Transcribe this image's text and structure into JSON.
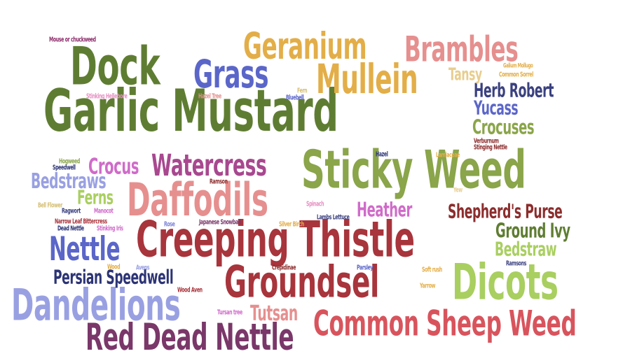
{
  "words": [
    {
      "text": "Garlic Mustard",
      "color": "#5f7d32"
    },
    {
      "text": "Sticky Weed",
      "color": "#8aa54a"
    },
    {
      "text": "Creeping Thistle",
      "color": "#a8343c"
    },
    {
      "text": "Dock",
      "color": "#5f7d32"
    },
    {
      "text": "Geranium",
      "color": "#e3ae48"
    },
    {
      "text": "Brambles",
      "color": "#e68f8f"
    },
    {
      "text": "Mullein",
      "color": "#e3ae48"
    },
    {
      "text": "Grass",
      "color": "#5b66c9"
    },
    {
      "text": "Groundsel",
      "color": "#a8343c"
    },
    {
      "text": "Dicots",
      "color": "#a9cf60"
    },
    {
      "text": "Dandelions",
      "color": "#99a0e2"
    },
    {
      "text": "Daffodils",
      "color": "#e68f8f"
    },
    {
      "text": "Common Sheep Weed",
      "color": "#d8545d"
    },
    {
      "text": "Red Dead Nettle",
      "color": "#7a3769"
    },
    {
      "text": "Nettle",
      "color": "#5b66c9"
    },
    {
      "text": "Watercress",
      "color": "#a8488f"
    },
    {
      "text": "Persian Speedwell",
      "color": "#2c3475"
    },
    {
      "text": "Shepherd's Purse",
      "color": "#8c2d2d"
    },
    {
      "text": "Herb Robert",
      "color": "#3a417f"
    },
    {
      "text": "Crocuses",
      "color": "#8aa54a"
    },
    {
      "text": "Yucass",
      "color": "#5b66c9"
    },
    {
      "text": "Ground Ivy",
      "color": "#5f7d32"
    },
    {
      "text": "Bedstraw",
      "color": "#a9cf60"
    },
    {
      "text": "Tutsan",
      "color": "#e68f8f"
    },
    {
      "text": "Heather",
      "color": "#d06bc9"
    },
    {
      "text": "Bedstraws",
      "color": "#99a0e2"
    },
    {
      "text": "Crocus",
      "color": "#d06bc9"
    },
    {
      "text": "Ferns",
      "color": "#a9cf60"
    },
    {
      "text": "Tansy",
      "color": "#e8cd8e"
    },
    {
      "text": "Mouse or chuckweed",
      "color": "#8c2d6a"
    },
    {
      "text": "Stinking Hellebore",
      "color": "#e68fc2"
    },
    {
      "text": "Hazel Tree",
      "color": "#e68f8f"
    },
    {
      "text": "Fern",
      "color": "#d4bf74"
    },
    {
      "text": "Bluebell",
      "color": "#5b66c9"
    },
    {
      "text": "Galium Mollugo",
      "color": "#e3ae48"
    },
    {
      "text": "Common Sorrel",
      "color": "#e3ae48"
    },
    {
      "text": "Hogweed",
      "color": "#8aa54a"
    },
    {
      "text": "Speedwell",
      "color": "#2c3475"
    },
    {
      "text": "Hazel",
      "color": "#2c3475"
    },
    {
      "text": "Verburnum",
      "color": "#8c2d2d"
    },
    {
      "text": "Stinging Nettle",
      "color": "#8c2d2d"
    },
    {
      "text": "Lamiaceae",
      "color": "#e3ae48"
    },
    {
      "text": "Ramson",
      "color": "#8c2d2d"
    },
    {
      "text": "Bell Flower",
      "color": "#d4bf74"
    },
    {
      "text": "Ragwort",
      "color": "#3a417f"
    },
    {
      "text": "Manocot",
      "color": "#d06bc9"
    },
    {
      "text": "Spinach",
      "color": "#e68fc2"
    },
    {
      "text": "Yew",
      "color": "#e8cd8e"
    },
    {
      "text": "Narrow Leaf Bittercress",
      "color": "#a8343c"
    },
    {
      "text": "Dead Nettle",
      "color": "#2c3475"
    },
    {
      "text": "Stinking Iris",
      "color": "#d06bc9"
    },
    {
      "text": "Rose",
      "color": "#7b83d6"
    },
    {
      "text": "Japanese Snowball",
      "color": "#7a3769"
    },
    {
      "text": "Silver Birch",
      "color": "#e3ae48"
    },
    {
      "text": "Lambs Lettuce",
      "color": "#3a417f"
    },
    {
      "text": "Wood",
      "color": "#e3ae48"
    },
    {
      "text": "Avens",
      "color": "#99a0e2"
    },
    {
      "text": "Crepidinae",
      "color": "#8c2d2d"
    },
    {
      "text": "Parsley",
      "color": "#5b66c9"
    },
    {
      "text": "Ramsons",
      "color": "#3a417f"
    },
    {
      "text": "Soft rush",
      "color": "#e3ae48"
    },
    {
      "text": "Wood Aven",
      "color": "#a8343c"
    },
    {
      "text": "Yarrow",
      "color": "#e3ae48"
    },
    {
      "text": "Tursan tree",
      "color": "#d06bc9"
    }
  ]
}
